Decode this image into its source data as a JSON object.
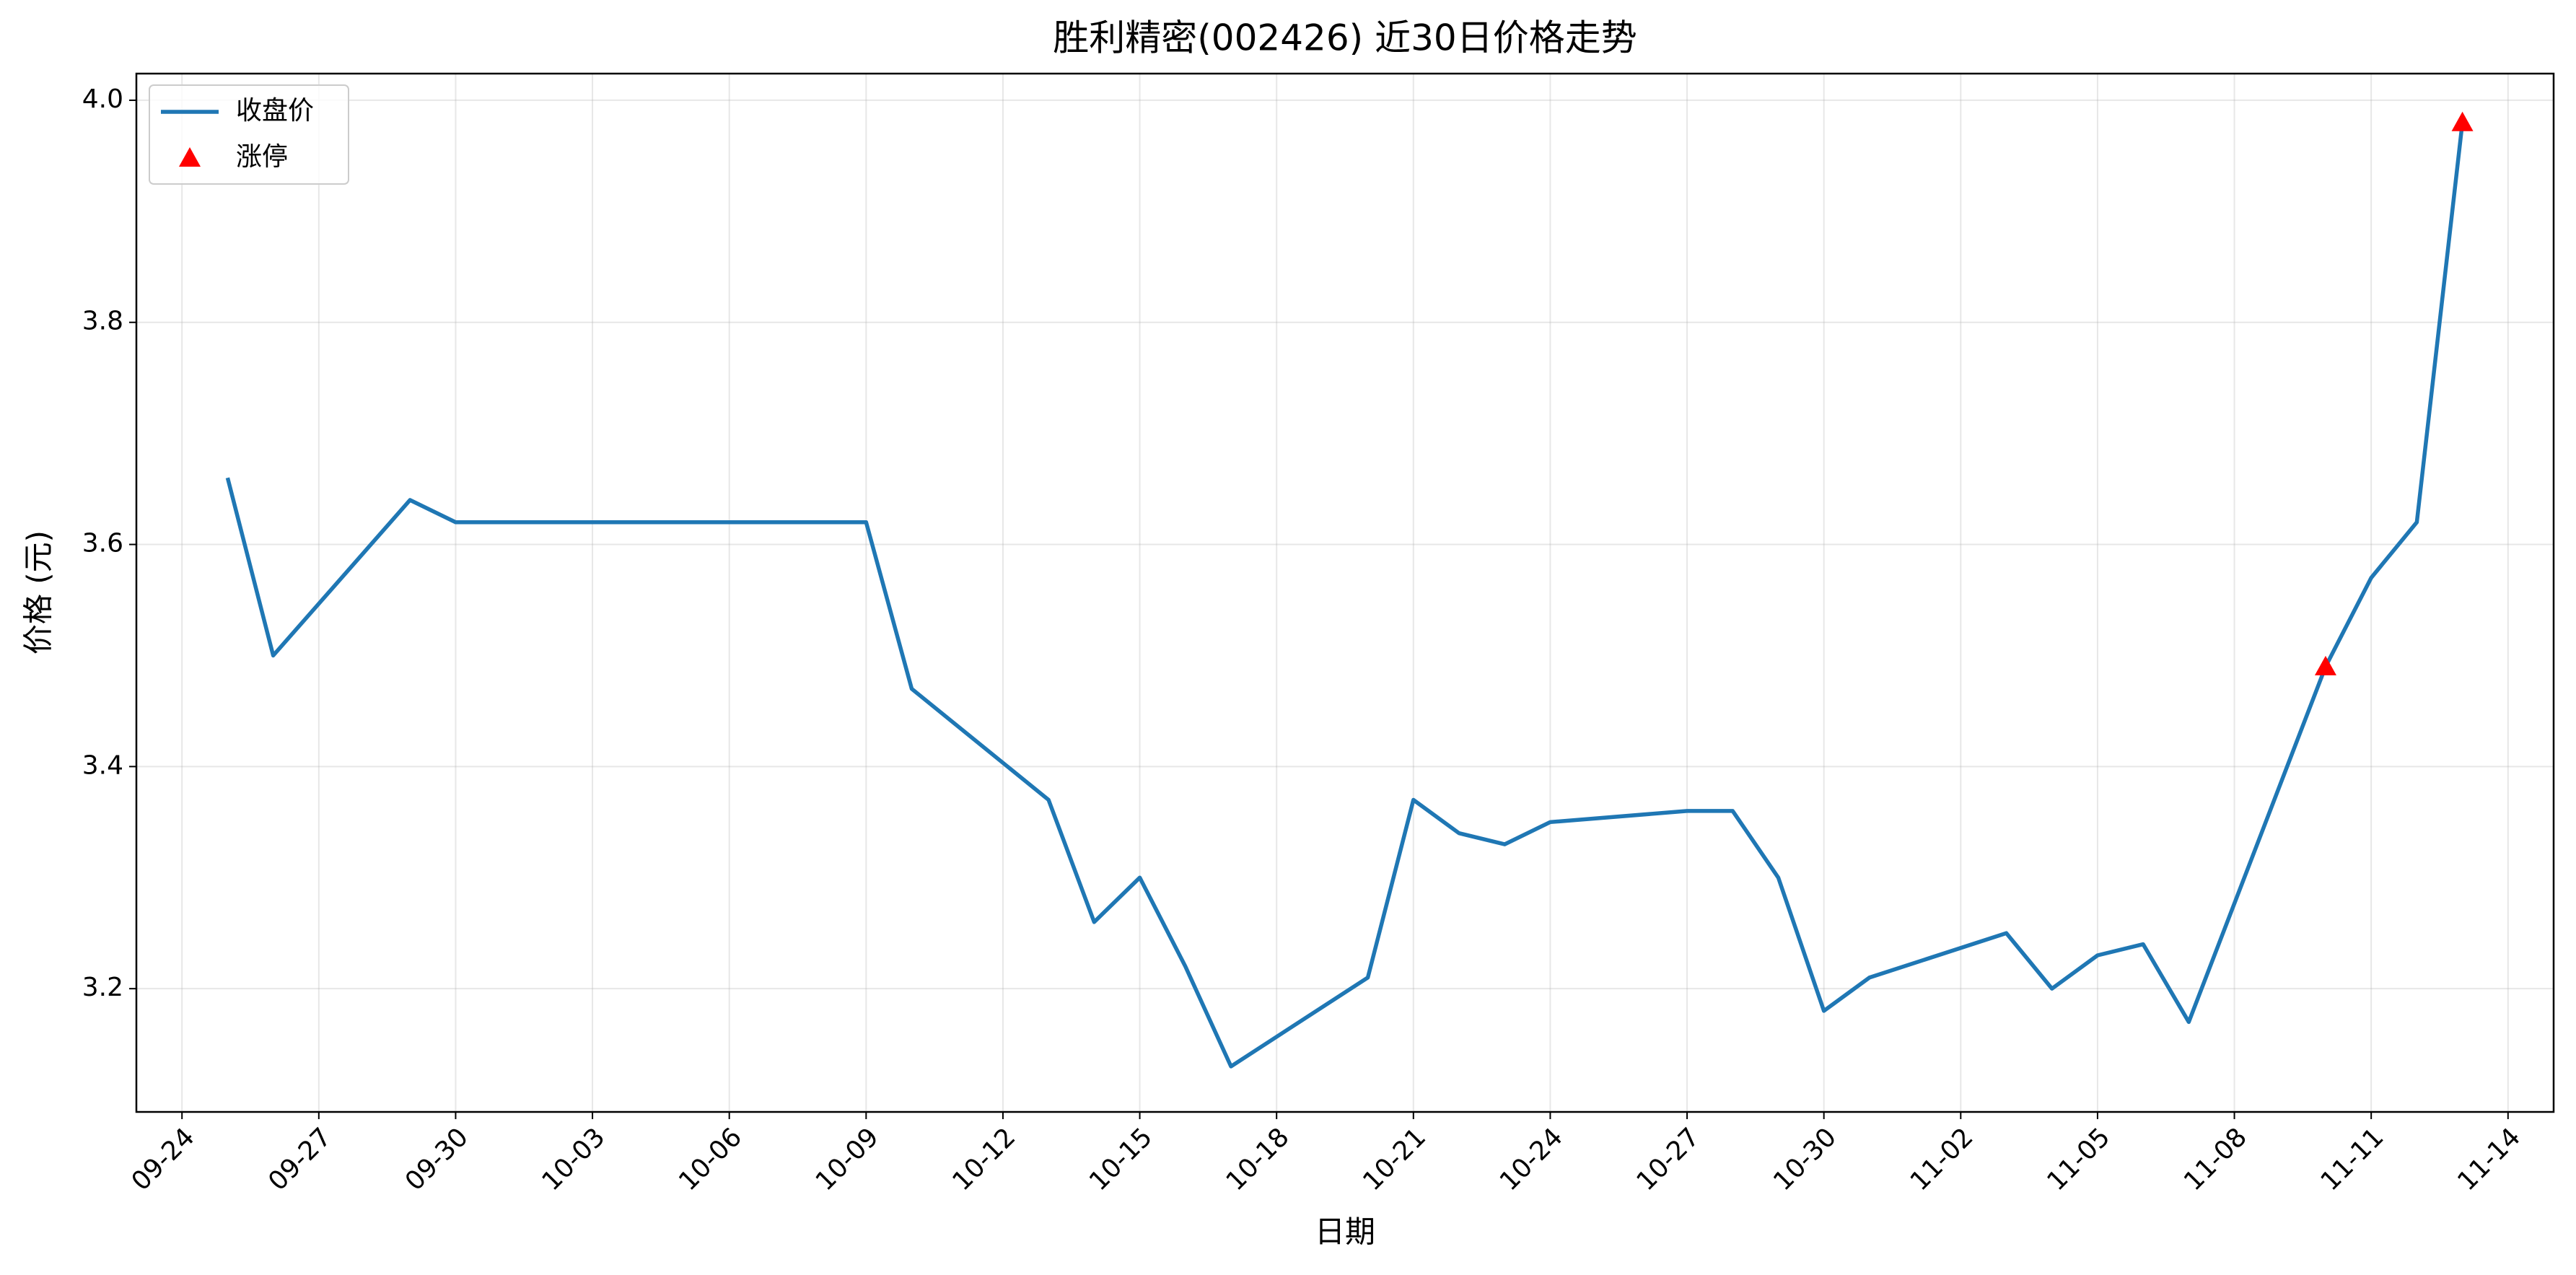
{
  "chart_data": {
    "type": "line",
    "title": "胜利精密(002426) 近30日价格走势",
    "x_label": "日期",
    "y_label": "价格 (元)",
    "x": [
      "09-25",
      "09-26",
      "09-29",
      "09-30",
      "10-09",
      "10-10",
      "10-13",
      "10-14",
      "10-15",
      "10-16",
      "10-17",
      "10-20",
      "10-21",
      "10-22",
      "10-23",
      "10-24",
      "10-27",
      "10-28",
      "10-29",
      "10-30",
      "10-31",
      "11-03",
      "11-04",
      "11-05",
      "11-06",
      "11-07",
      "11-10",
      "11-11",
      "11-12",
      "11-13"
    ],
    "series": [
      {
        "name": "收盘价",
        "color": "#1f77b4",
        "values": [
          3.66,
          3.5,
          3.64,
          3.62,
          3.62,
          3.47,
          3.37,
          3.26,
          3.3,
          3.22,
          3.13,
          3.21,
          3.37,
          3.34,
          3.33,
          3.35,
          3.36,
          3.36,
          3.3,
          3.18,
          3.21,
          3.25,
          3.2,
          3.23,
          3.24,
          3.17,
          3.49,
          3.57,
          3.62,
          3.98
        ]
      },
      {
        "name": "涨停",
        "color": "#ff0000",
        "type": "scatter",
        "marker": "triangle",
        "x": [
          "11-10",
          "11-13"
        ],
        "values": [
          3.49,
          3.98
        ]
      }
    ],
    "xlim": [
      "09-23",
      "11-15"
    ],
    "xticks": [
      "09-24",
      "09-27",
      "09-30",
      "10-03",
      "10-06",
      "10-09",
      "10-12",
      "10-15",
      "10-18",
      "10-21",
      "10-24",
      "10-27",
      "10-30",
      "11-02",
      "11-05",
      "11-08",
      "11-11",
      "11-14"
    ],
    "ylim": [
      3.089,
      4.024
    ],
    "yticks": [
      3.2,
      3.4,
      3.6,
      3.8,
      {
        "value": 4,
        "label": "4.0"
      }
    ],
    "grid": true,
    "legend": "upper left"
  }
}
